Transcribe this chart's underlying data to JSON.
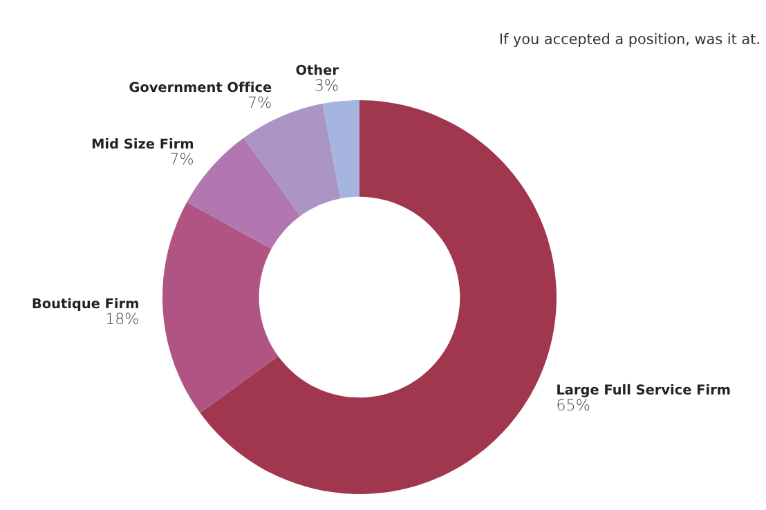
{
  "chart_data": {
    "type": "donut",
    "title": "If you accepted a position, was it at.",
    "categories": [
      "Large Full Service Firm",
      "Boutique Firm",
      "Mid Size Firm",
      "Government Office",
      "Other"
    ],
    "values": [
      65,
      18,
      7,
      7,
      3
    ],
    "value_labels": [
      "65%",
      "18%",
      "7%",
      "7%",
      "3%"
    ],
    "colors": [
      "#a0374f",
      "#b05483",
      "#b277b0",
      "#ab95c5",
      "#a5b5df"
    ],
    "legend": false
  }
}
